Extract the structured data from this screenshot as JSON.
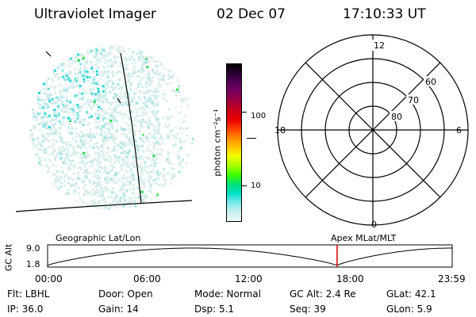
{
  "header": {
    "title": "Ultraviolet Imager",
    "date": "02 Dec 07",
    "time": "17:10:33 UT"
  },
  "colorbar": {
    "unit_label": "photon cm⁻²s⁻¹",
    "ticks": [
      "100",
      "10"
    ],
    "colors": [
      "#000000",
      "#2a0033",
      "#550055",
      "#7a0060",
      "#a0003a",
      "#c8001a",
      "#e60000",
      "#ff4000",
      "#ff8a00",
      "#ffc400",
      "#f0ff00",
      "#a8ff00",
      "#3cff00",
      "#00e07a",
      "#00e0c8",
      "#7ae8e8",
      "#c8f0f0",
      "#eef6f6"
    ]
  },
  "polar": {
    "mlt_labels": {
      "top": "12",
      "left": "18",
      "right": "6",
      "bottom": "0"
    },
    "lat_labels": [
      "60",
      "70",
      "80"
    ]
  },
  "timeline": {
    "left_label": "Geographic Lat/Lon",
    "right_label": "Apex MLat/MLT",
    "axis_label": "GC Alt",
    "y_ticks": [
      "9.0",
      "1.8"
    ],
    "x_ticks": [
      "00:00",
      "06:00",
      "12:00",
      "18:00",
      "23:59"
    ],
    "current_fraction": 0.7155
  },
  "info": {
    "filter": "Flt: LBHL",
    "ip": "IP: 36.0",
    "door": "Door: Open",
    "gain": "Gain: 14",
    "mode": "Mode: Normal",
    "dsp": "Dsp:    5.1",
    "gc_alt": "GC Alt: 2.4 Re",
    "seq": "Seq: 39",
    "glat": "GLat:   42.1",
    "glon": "GLon:    5.9"
  }
}
